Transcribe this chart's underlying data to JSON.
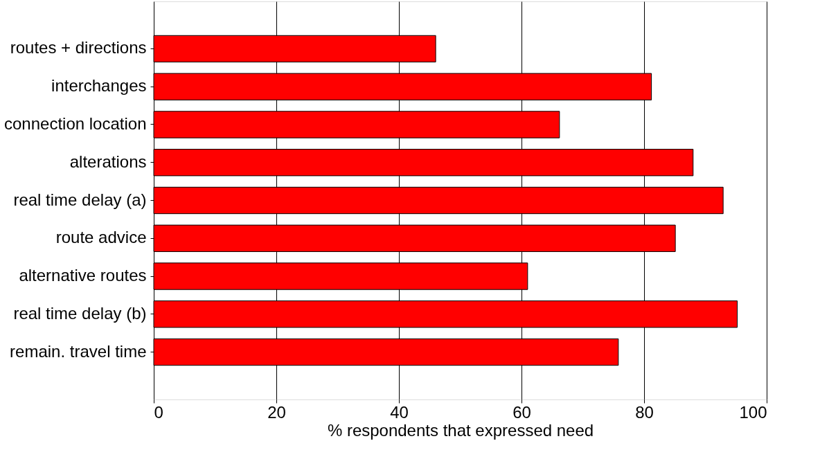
{
  "chart_data": {
    "type": "bar",
    "orientation": "horizontal",
    "xlabel": "% respondents that expressed need",
    "categories": [
      "routes + directions",
      "interchanges",
      "connection location",
      "alterations",
      "real time delay (a)",
      "route advice",
      "alternative routes",
      "real time delay (b)",
      "remain. travel time"
    ],
    "values": [
      46,
      81.2,
      66.2,
      88,
      92.9,
      85.1,
      61,
      95.2,
      75.8
    ],
    "color": "#ff0000",
    "xlim": [
      0,
      100
    ],
    "xticks": [
      0,
      20,
      40,
      60,
      80,
      100
    ],
    "grid": "x"
  }
}
